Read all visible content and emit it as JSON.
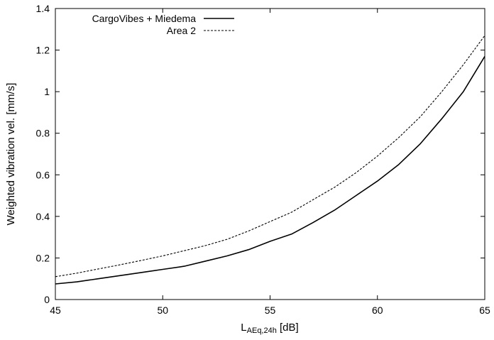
{
  "chart_data": {
    "type": "line",
    "title": "",
    "xlabel_main": "L",
    "xlabel_sub": "AEq,24h",
    "xlabel_unit": " [dB]",
    "ylabel": "Weighted vibration vel. [mm/s]",
    "xlim": [
      45,
      65
    ],
    "ylim": [
      0,
      1.4
    ],
    "xticks": [
      45,
      50,
      55,
      60,
      65
    ],
    "yticks": [
      0,
      0.2,
      0.4,
      0.6,
      0.8,
      1,
      1.2,
      1.4
    ],
    "grid": false,
    "legend_position": "top-left",
    "series": [
      {
        "name": "CargoVibes + Miedema",
        "style": "solid",
        "x": [
          45,
          46,
          47,
          48,
          49,
          50,
          51,
          52,
          53,
          54,
          55,
          56,
          57,
          58,
          59,
          60,
          61,
          62,
          63,
          64,
          65
        ],
        "values": [
          0.075,
          0.085,
          0.1,
          0.115,
          0.13,
          0.145,
          0.16,
          0.185,
          0.21,
          0.24,
          0.28,
          0.315,
          0.37,
          0.43,
          0.5,
          0.57,
          0.65,
          0.75,
          0.87,
          1.0,
          1.17
        ]
      },
      {
        "name": "Area 2",
        "style": "dashed",
        "x": [
          45,
          46,
          47,
          48,
          49,
          50,
          51,
          52,
          53,
          54,
          55,
          56,
          57,
          58,
          59,
          60,
          61,
          62,
          63,
          64,
          65
        ],
        "values": [
          0.11,
          0.127,
          0.147,
          0.167,
          0.188,
          0.21,
          0.235,
          0.26,
          0.29,
          0.33,
          0.375,
          0.42,
          0.48,
          0.54,
          0.61,
          0.69,
          0.78,
          0.88,
          1.0,
          1.13,
          1.27
        ]
      }
    ]
  }
}
